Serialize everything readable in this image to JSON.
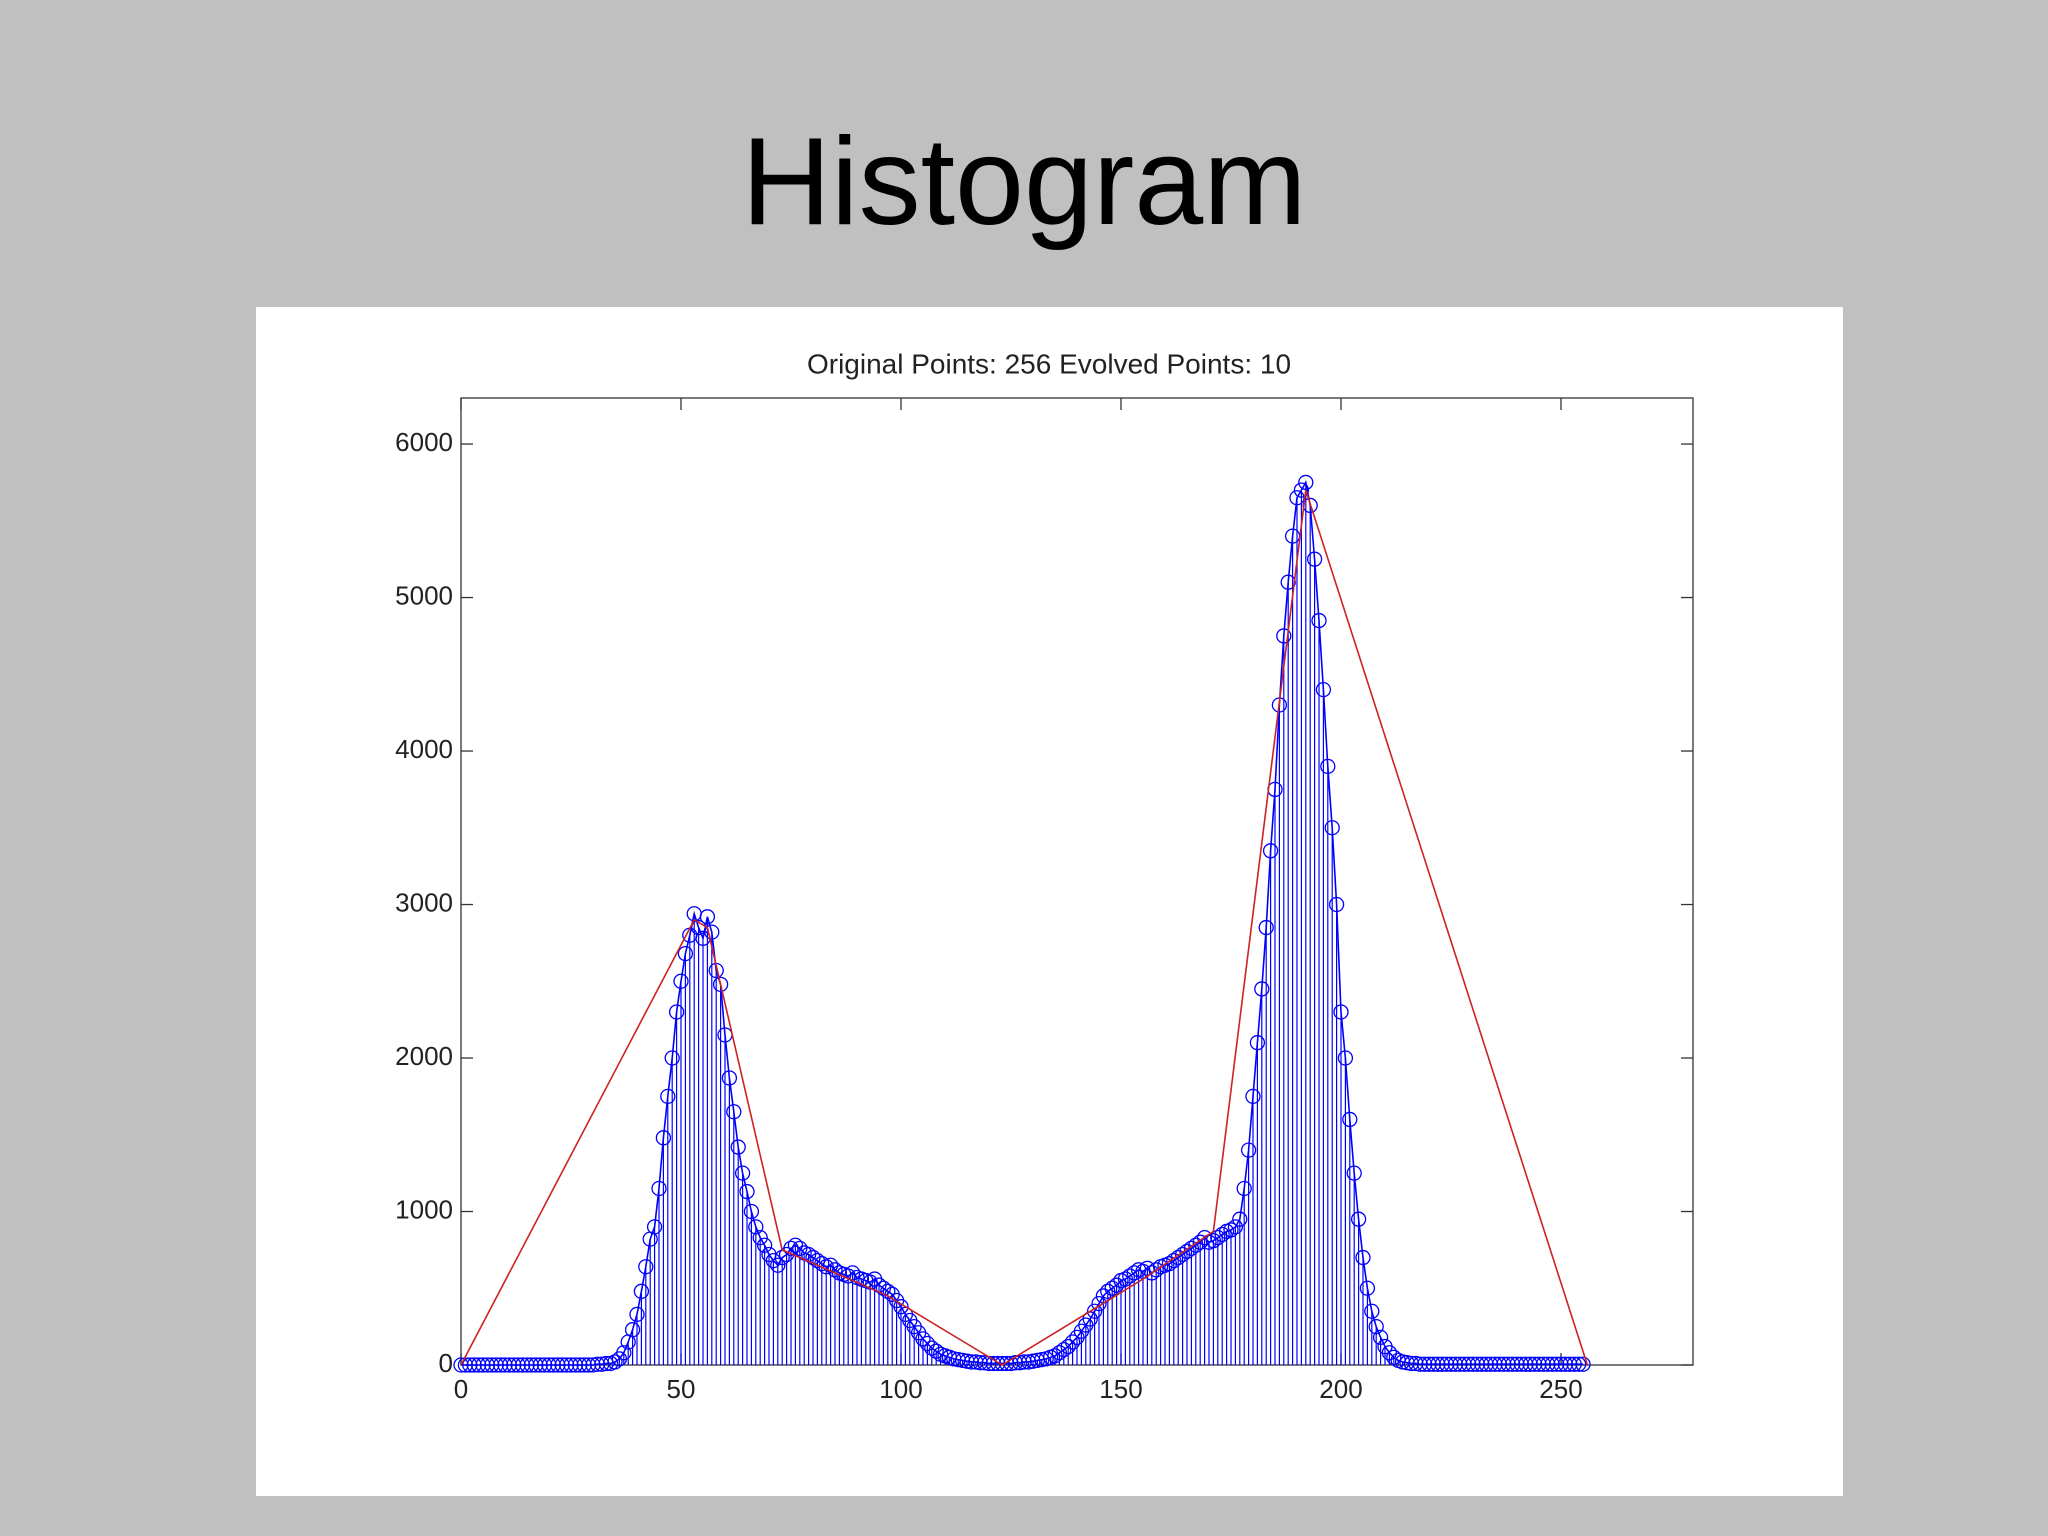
{
  "slide_title": "Histogram",
  "chart_data": {
    "type": "stem",
    "title": "Original Points: 256   Evolved Points: 10",
    "xlim": [
      0,
      280
    ],
    "ylim": [
      0,
      6300
    ],
    "xticks": [
      0,
      50,
      100,
      150,
      200,
      250
    ],
    "yticks": [
      0,
      1000,
      2000,
      3000,
      4000,
      5000,
      6000
    ],
    "series": [
      {
        "color": "#0000ff",
        "marker": "circle",
        "x": [
          0,
          1,
          2,
          3,
          4,
          5,
          6,
          7,
          8,
          9,
          10,
          11,
          12,
          13,
          14,
          15,
          16,
          17,
          18,
          19,
          20,
          21,
          22,
          23,
          24,
          25,
          26,
          27,
          28,
          29,
          30,
          31,
          32,
          33,
          34,
          35,
          36,
          37,
          38,
          39,
          40,
          41,
          42,
          43,
          44,
          45,
          46,
          47,
          48,
          49,
          50,
          51,
          52,
          53,
          54,
          55,
          56,
          57,
          58,
          59,
          60,
          61,
          62,
          63,
          64,
          65,
          66,
          67,
          68,
          69,
          70,
          71,
          72,
          73,
          74,
          75,
          76,
          77,
          78,
          79,
          80,
          81,
          82,
          83,
          84,
          85,
          86,
          87,
          88,
          89,
          90,
          91,
          92,
          93,
          94,
          95,
          96,
          97,
          98,
          99,
          100,
          101,
          102,
          103,
          104,
          105,
          106,
          107,
          108,
          109,
          110,
          111,
          112,
          113,
          114,
          115,
          116,
          117,
          118,
          119,
          120,
          121,
          122,
          123,
          124,
          125,
          126,
          127,
          128,
          129,
          130,
          131,
          132,
          133,
          134,
          135,
          136,
          137,
          138,
          139,
          140,
          141,
          142,
          143,
          144,
          145,
          146,
          147,
          148,
          149,
          150,
          151,
          152,
          153,
          154,
          155,
          156,
          157,
          158,
          159,
          160,
          161,
          162,
          163,
          164,
          165,
          166,
          167,
          168,
          169,
          170,
          171,
          172,
          173,
          174,
          175,
          176,
          177,
          178,
          179,
          180,
          181,
          182,
          183,
          184,
          185,
          186,
          187,
          188,
          189,
          190,
          191,
          192,
          193,
          194,
          195,
          196,
          197,
          198,
          199,
          200,
          201,
          202,
          203,
          204,
          205,
          206,
          207,
          208,
          209,
          210,
          211,
          212,
          213,
          214,
          215,
          216,
          217,
          218,
          219,
          220,
          221,
          222,
          223,
          224,
          225,
          226,
          227,
          228,
          229,
          230,
          231,
          232,
          233,
          234,
          235,
          236,
          237,
          238,
          239,
          240,
          241,
          242,
          243,
          244,
          245,
          246,
          247,
          248,
          249,
          250,
          251,
          252,
          253,
          254,
          255
        ],
        "values": [
          0,
          0,
          0,
          0,
          0,
          0,
          0,
          0,
          0,
          0,
          0,
          0,
          0,
          0,
          0,
          0,
          0,
          0,
          0,
          0,
          0,
          0,
          0,
          0,
          0,
          0,
          0,
          0,
          0,
          0,
          0,
          5,
          5,
          10,
          10,
          20,
          40,
          80,
          150,
          230,
          330,
          480,
          640,
          820,
          900,
          1150,
          1480,
          1750,
          2000,
          2300,
          2500,
          2680,
          2800,
          2940,
          2850,
          2780,
          2920,
          2820,
          2570,
          2480,
          2150,
          1870,
          1650,
          1420,
          1250,
          1130,
          1000,
          900,
          830,
          780,
          720,
          680,
          650,
          700,
          720,
          760,
          780,
          760,
          730,
          720,
          700,
          680,
          660,
          640,
          650,
          620,
          600,
          590,
          580,
          600,
          570,
          560,
          550,
          540,
          560,
          520,
          500,
          480,
          460,
          420,
          380,
          330,
          290,
          250,
          210,
          170,
          140,
          110,
          90,
          70,
          60,
          50,
          40,
          35,
          30,
          25,
          20,
          20,
          15,
          15,
          10,
          10,
          10,
          10,
          10,
          10,
          15,
          15,
          20,
          20,
          25,
          30,
          35,
          40,
          50,
          60,
          80,
          100,
          120,
          150,
          180,
          220,
          260,
          300,
          350,
          400,
          450,
          480,
          500,
          520,
          550,
          560,
          580,
          600,
          620,
          610,
          630,
          600,
          620,
          640,
          650,
          660,
          680,
          700,
          720,
          740,
          760,
          780,
          800,
          830,
          800,
          810,
          830,
          850,
          870,
          880,
          900,
          950,
          1150,
          1400,
          1750,
          2100,
          2450,
          2850,
          3350,
          3750,
          4300,
          4750,
          5100,
          5400,
          5650,
          5700,
          5750,
          5600,
          5250,
          4850,
          4400,
          3900,
          3500,
          3000,
          2300,
          2000,
          1600,
          1250,
          950,
          700,
          500,
          350,
          250,
          180,
          120,
          80,
          50,
          30,
          20,
          15,
          10,
          10,
          5,
          5,
          5,
          5,
          5,
          5,
          5,
          5,
          5,
          5,
          5,
          5,
          5,
          5,
          5,
          5,
          5,
          5,
          5,
          5,
          5,
          5,
          5,
          5,
          5,
          5,
          5,
          5,
          5,
          5,
          5,
          5,
          5,
          5,
          5,
          5,
          5,
          5
        ]
      },
      {
        "color": "#cc2222",
        "x": [
          0,
          53,
          56,
          73,
          97,
          123,
          155,
          171,
          192,
          256
        ],
        "values": [
          0,
          2900,
          2850,
          750,
          450,
          0,
          560,
          870,
          5700,
          0
        ]
      }
    ]
  }
}
